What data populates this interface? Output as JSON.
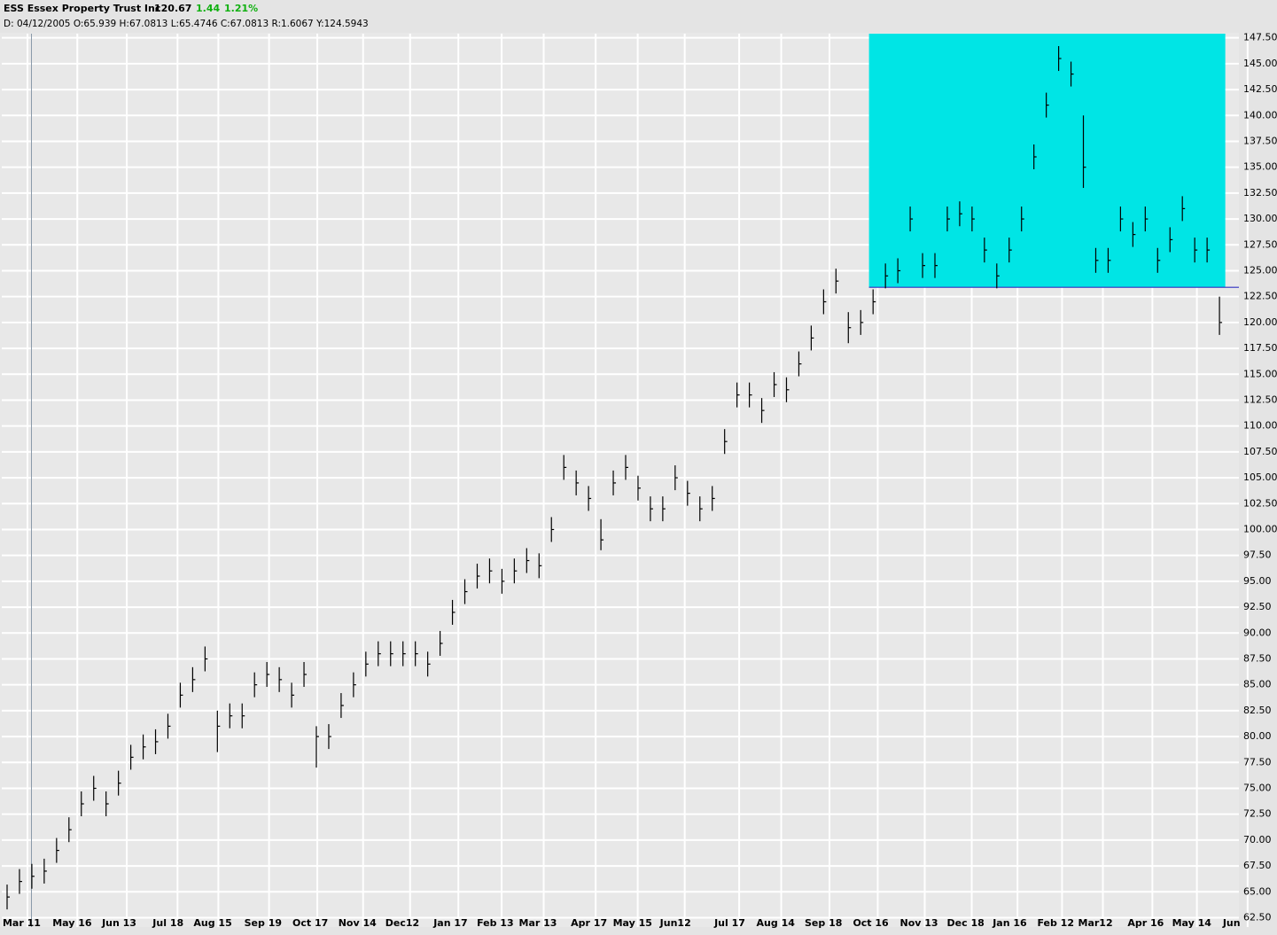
{
  "header": {
    "symbol_name": "ESS Essex Property Trust Inc",
    "last": "120.67",
    "change": "1.44",
    "change_pct": "1.21%",
    "info": "D: 04/12/2005 O:65.939 H:67.0813 L:65.4746 C:67.0813 R:1.6067 Y:124.5943"
  },
  "chart_data": {
    "type": "ohlc",
    "color": "#000000",
    "grid": true,
    "x": [
      0,
      1,
      2,
      3,
      4,
      5,
      6,
      7,
      8,
      9,
      10,
      11,
      12,
      13,
      14,
      15,
      16,
      17,
      18,
      19,
      20,
      21,
      22,
      23,
      24,
      25,
      26,
      27,
      28,
      29,
      30,
      31,
      32,
      33,
      34,
      35,
      36,
      37,
      38,
      39,
      40,
      41,
      42,
      43,
      44,
      45,
      46,
      47,
      48,
      49,
      50,
      51,
      52,
      53,
      54,
      55,
      56,
      57,
      58,
      59,
      60,
      61,
      62,
      63,
      64,
      65,
      66,
      67,
      68,
      69,
      70,
      71,
      72,
      73,
      74,
      75,
      76,
      77,
      78,
      79,
      80,
      81,
      82,
      83,
      84,
      85,
      86,
      87,
      88,
      89,
      90,
      91,
      92,
      93,
      94,
      95,
      96,
      97,
      98
    ],
    "high": [
      65.7,
      67.2,
      67.7,
      68.2,
      70.2,
      72.2,
      74.7,
      76.2,
      74.7,
      76.7,
      79.2,
      80.2,
      80.7,
      82.2,
      85.2,
      86.7,
      88.7,
      82.5,
      83.2,
      83.2,
      86.2,
      87.2,
      86.7,
      85.2,
      87.2,
      81,
      81.2,
      84.2,
      86.2,
      88.2,
      89.2,
      89.2,
      89.2,
      89.2,
      88.2,
      90.2,
      93.2,
      95.2,
      96.7,
      97.2,
      96.2,
      97.2,
      98.2,
      97.7,
      101.2,
      107.2,
      105.7,
      104.2,
      101,
      105.7,
      107.2,
      105.2,
      103.2,
      103.2,
      106.2,
      104.7,
      103.2,
      104.2,
      109.7,
      114.2,
      114.2,
      112.7,
      115.2,
      114.7,
      117.2,
      119.7,
      123.2,
      125.2,
      121,
      121.2,
      123.2,
      125.7,
      126.2,
      131.2,
      126.7,
      126.7,
      131.2,
      131.7,
      131.2,
      128.2,
      125.7,
      128.2,
      131.2,
      137.2,
      142.2,
      146.7,
      145.2,
      140,
      127.2,
      127.2,
      131.2,
      129.7,
      131.2,
      127.2,
      129.2,
      132.2,
      128.2,
      128.2,
      122.5
    ],
    "low": [
      63.3,
      64.8,
      65.3,
      65.8,
      67.8,
      69.8,
      72.3,
      73.8,
      72.3,
      74.3,
      76.8,
      77.8,
      78.3,
      79.8,
      82.8,
      84.3,
      86.3,
      78.5,
      80.8,
      80.8,
      83.8,
      84.8,
      84.3,
      82.8,
      84.8,
      77,
      78.8,
      81.8,
      83.8,
      85.8,
      86.8,
      86.8,
      86.8,
      86.8,
      85.8,
      87.8,
      90.8,
      92.8,
      94.3,
      94.8,
      93.8,
      94.8,
      95.8,
      95.3,
      98.8,
      104.8,
      103.3,
      101.8,
      98,
      103.3,
      104.8,
      102.8,
      100.8,
      100.8,
      103.8,
      102.3,
      100.8,
      101.8,
      107.3,
      111.8,
      111.8,
      110.3,
      112.8,
      112.3,
      114.8,
      117.3,
      120.8,
      122.8,
      118,
      118.8,
      120.8,
      123.3,
      123.8,
      128.8,
      124.3,
      124.3,
      128.8,
      129.3,
      128.8,
      125.8,
      123.3,
      125.8,
      128.8,
      134.8,
      139.8,
      144.3,
      142.8,
      133,
      124.8,
      124.8,
      128.8,
      127.3,
      128.8,
      124.8,
      126.8,
      129.8,
      125.8,
      125.8,
      118.8
    ],
    "close": [
      64.5,
      66,
      66.5,
      67,
      69,
      71,
      73.5,
      75,
      73.5,
      75.5,
      78,
      79,
      79.5,
      81,
      84,
      85.5,
      87.5,
      81,
      82,
      82,
      85,
      86,
      85.5,
      84,
      86,
      80,
      80,
      83,
      85,
      87,
      88,
      88,
      88,
      88,
      87,
      89,
      92,
      94,
      95.5,
      96,
      95,
      96,
      97,
      96.5,
      100,
      106,
      104.5,
      103,
      99,
      104.5,
      106,
      104,
      102,
      102,
      105,
      103.5,
      102,
      103,
      108.5,
      113,
      113,
      111.5,
      114,
      113.5,
      116,
      118.5,
      122,
      124,
      119.5,
      120,
      122,
      124.5,
      125,
      130,
      125.5,
      125.5,
      130,
      130.5,
      130,
      127,
      124.5,
      127,
      130,
      136,
      141,
      145.5,
      144,
      135,
      126,
      126,
      130,
      128.5,
      130,
      126,
      128,
      131,
      127,
      127,
      120
    ],
    "xlim": [
      0,
      100
    ],
    "xticks": [
      {
        "value": 0.07,
        "label": "Mar 11"
      },
      {
        "value": 4.1,
        "label": "May 16"
      },
      {
        "value": 8.1,
        "label": "Jun 13"
      },
      {
        "value": 12.2,
        "label": "Jul 18"
      },
      {
        "value": 15.5,
        "label": "Aug 15"
      },
      {
        "value": 19.6,
        "label": "Sep 19"
      },
      {
        "value": 23.5,
        "label": "Oct 17"
      },
      {
        "value": 27.2,
        "label": "Nov 14"
      },
      {
        "value": 31.0,
        "label": "Dec12"
      },
      {
        "value": 34.9,
        "label": "Jan 17"
      },
      {
        "value": 38.4,
        "label": "Feb 13"
      },
      {
        "value": 41.8,
        "label": "Mar 13"
      },
      {
        "value": 46.0,
        "label": "Apr 17"
      },
      {
        "value": 49.4,
        "label": "May 15"
      },
      {
        "value": 53.2,
        "label": "Jun12"
      },
      {
        "value": 57.6,
        "label": "Jul 17"
      },
      {
        "value": 61.0,
        "label": "Aug 14"
      },
      {
        "value": 64.9,
        "label": "Sep 18"
      },
      {
        "value": 68.8,
        "label": "Oct 16"
      },
      {
        "value": 72.6,
        "label": "Nov 13"
      },
      {
        "value": 76.4,
        "label": "Dec 18"
      },
      {
        "value": 80.1,
        "label": "Jan 16"
      },
      {
        "value": 83.7,
        "label": "Feb 12"
      },
      {
        "value": 87.0,
        "label": "Mar12"
      },
      {
        "value": 91.0,
        "label": "Apr 16"
      },
      {
        "value": 94.6,
        "label": "May 14"
      },
      {
        "value": 98.7,
        "label": "Jun"
      }
    ],
    "ylim": [
      61.6,
      147.9
    ],
    "yticks": [
      {
        "value": 62.5,
        "label": "62.50"
      },
      {
        "value": 65,
        "label": "65.00"
      },
      {
        "value": 67.5,
        "label": "67.50"
      },
      {
        "value": 70,
        "label": "70.00"
      },
      {
        "value": 72.5,
        "label": "72.50"
      },
      {
        "value": 75,
        "label": "75.00"
      },
      {
        "value": 77.5,
        "label": "77.50"
      },
      {
        "value": 80,
        "label": "80.00"
      },
      {
        "value": 82.5,
        "label": "82.50"
      },
      {
        "value": 85,
        "label": "85.00"
      },
      {
        "value": 87.5,
        "label": "87.50"
      },
      {
        "value": 90,
        "label": "90.00"
      },
      {
        "value": 92.5,
        "label": "92.50"
      },
      {
        "value": 95,
        "label": "95.00"
      },
      {
        "value": 97.5,
        "label": "97.50"
      },
      {
        "value": 100,
        "label": "100.00"
      },
      {
        "value": 102.5,
        "label": "102.50"
      },
      {
        "value": 105,
        "label": "105.00"
      },
      {
        "value": 107.5,
        "label": "107.50"
      },
      {
        "value": 110,
        "label": "110.00"
      },
      {
        "value": 112.5,
        "label": "112.50"
      },
      {
        "value": 115,
        "label": "115.00"
      },
      {
        "value": 117.5,
        "label": "117.50"
      },
      {
        "value": 120,
        "label": "120.00"
      },
      {
        "value": 122.5,
        "label": "122.50"
      },
      {
        "value": 125,
        "label": "125.00"
      },
      {
        "value": 127.5,
        "label": "127.50"
      },
      {
        "value": 130,
        "label": "130.00"
      },
      {
        "value": 132.5,
        "label": "132.50"
      },
      {
        "value": 135,
        "label": "135.00"
      },
      {
        "value": 137.5,
        "label": "137.50"
      },
      {
        "value": 140,
        "label": "140.00"
      },
      {
        "value": 142.5,
        "label": "142.50"
      },
      {
        "value": 145,
        "label": "145.00"
      },
      {
        "value": 147.5,
        "label": "147.50"
      }
    ],
    "annotations": {
      "cursor_x": 2.4,
      "cursor_color": "#8a9aaa",
      "box": {
        "x": [
          70.1,
          98.9
        ],
        "y": [
          123.4,
          147.9
        ],
        "color": "#00e5e5"
      },
      "line": {
        "x": [
          70.1,
          100
        ],
        "y": 123.4,
        "color": "#3030c0"
      }
    }
  }
}
